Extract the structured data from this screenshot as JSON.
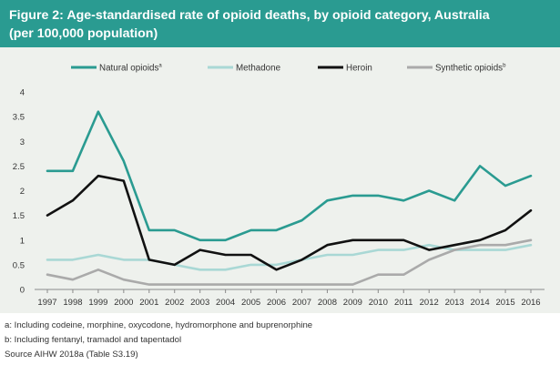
{
  "header": {
    "title_line1": "Figure 2: Age-standardised rate of opioid deaths, by opioid category, Australia",
    "title_line2": "(per 100,000 population)"
  },
  "chart_data": {
    "type": "line",
    "title": "Figure 2: Age-standardised rate of opioid deaths, by opioid category, Australia (per 100,000 population)",
    "xlabel": "",
    "ylabel": "",
    "ylim": [
      0,
      4
    ],
    "yticks": [
      "0",
      "0.5",
      "1",
      "1.5",
      "2",
      "2.5",
      "3",
      "3.5",
      "4"
    ],
    "grid": false,
    "legend_position": "top",
    "x": [
      "1997",
      "1998",
      "1999",
      "2000",
      "2001",
      "2002",
      "2003",
      "2004",
      "2005",
      "2006",
      "2007",
      "2008",
      "2009",
      "2010",
      "2011",
      "2012",
      "2013",
      "2014",
      "2015",
      "2016"
    ],
    "series": [
      {
        "name": "Natural opioids",
        "superscript": "a",
        "color": "#2a9b91",
        "values": [
          2.4,
          2.4,
          3.6,
          2.6,
          1.2,
          1.2,
          1.0,
          1.0,
          1.2,
          1.2,
          1.4,
          1.8,
          1.9,
          1.9,
          1.8,
          2.0,
          1.8,
          2.5,
          2.1,
          2.3
        ]
      },
      {
        "name": "Methadone",
        "superscript": "",
        "color": "#a9d8d5",
        "values": [
          0.6,
          0.6,
          0.7,
          0.6,
          0.6,
          0.5,
          0.4,
          0.4,
          0.5,
          0.5,
          0.6,
          0.7,
          0.7,
          0.8,
          0.8,
          0.9,
          0.8,
          0.8,
          0.8,
          0.9
        ]
      },
      {
        "name": "Heroin",
        "superscript": "",
        "color": "#111111",
        "values": [
          1.5,
          1.8,
          2.3,
          2.2,
          0.6,
          0.5,
          0.8,
          0.7,
          0.7,
          0.4,
          0.6,
          0.9,
          1.0,
          1.0,
          1.0,
          0.8,
          0.9,
          1.0,
          1.2,
          1.6
        ]
      },
      {
        "name": "Synthetic opioids",
        "superscript": "b",
        "color": "#aaaaaa",
        "values": [
          0.3,
          0.2,
          0.4,
          0.2,
          0.1,
          0.1,
          0.1,
          0.1,
          0.1,
          0.1,
          0.1,
          0.1,
          0.1,
          0.3,
          0.3,
          0.6,
          0.8,
          0.9,
          0.9,
          1.0
        ]
      }
    ]
  },
  "notes": {
    "note_a": "a: Including codeine, morphine, oxycodone, hydromorphone and buprenorphine",
    "note_b": "b: Including fentanyl, tramadol and tapentadol",
    "source": "Source AIHW 2018a (Table S3.19)"
  }
}
